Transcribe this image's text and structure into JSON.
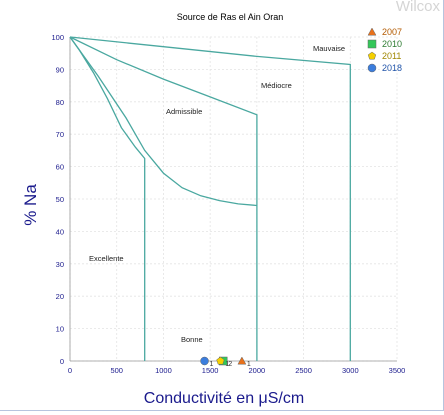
{
  "chart_data": {
    "type": "scatter",
    "title": "Source de Ras el Ain Oran",
    "watermark": "Wilcox",
    "xlabel": "Conductivité en μS/cm",
    "ylabel": "% Na",
    "xlim": [
      0,
      3500
    ],
    "ylim": [
      0,
      100
    ],
    "x_ticks": [
      "0",
      "500",
      "1000",
      "1500",
      "2000",
      "2500",
      "3000",
      "3500"
    ],
    "y_ticks": [
      "0",
      "10",
      "20",
      "30",
      "40",
      "50",
      "60",
      "70",
      "80",
      "90",
      "100"
    ],
    "grid": true,
    "legend_position": "top-right",
    "zones": [
      "Excellente",
      "Bonne",
      "Admissible",
      "Médiocre",
      "Mauvaise"
    ],
    "series": [
      {
        "name": "2007",
        "marker": "triangle",
        "color": "#e8711b",
        "x": [
          1840
        ],
        "y": [
          0
        ],
        "label": "1"
      },
      {
        "name": "2010",
        "marker": "square",
        "color": "#34c759",
        "x": [
          1640
        ],
        "y": [
          0
        ],
        "label": "2"
      },
      {
        "name": "2011",
        "marker": "pentagon",
        "color": "#f5d000",
        "x": [
          1610
        ],
        "y": [
          0
        ],
        "label": "1"
      },
      {
        "name": "2018",
        "marker": "circle",
        "color": "#3b7ddd",
        "x": [
          1440
        ],
        "y": [
          0
        ],
        "label": "1"
      }
    ],
    "colors": {
      "curves": "#4aa8a0",
      "axis_text": "#1a1a8c",
      "grid": "#e4e4e4"
    }
  }
}
